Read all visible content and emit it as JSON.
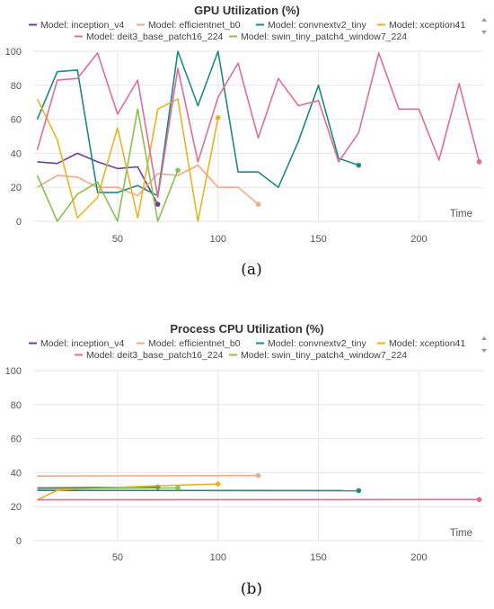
{
  "figure_captions": [
    "(a)",
    "(b)"
  ],
  "chart_data": [
    {
      "type": "line",
      "title": "GPU Utilization (%)",
      "xlabel": "Time",
      "ylabel": "",
      "xlim": [
        8,
        232
      ],
      "ylim": [
        0,
        100
      ],
      "xticks": [
        50,
        100,
        150,
        200
      ],
      "yticks": [
        0,
        20,
        40,
        60,
        80,
        100
      ],
      "grid": true,
      "legend_position": "top",
      "series": [
        {
          "name": "Model: inception_v4",
          "color": "#6b3fa0",
          "x": [
            10,
            20,
            30,
            40,
            50,
            60,
            70
          ],
          "y": [
            35,
            34,
            40,
            35,
            31,
            32,
            10
          ]
        },
        {
          "name": "Model: efficientnet_b0",
          "color": "#f2a98a",
          "x": [
            10,
            20,
            30,
            40,
            50,
            60,
            70,
            80,
            90,
            100,
            110,
            120
          ],
          "y": [
            20,
            27,
            26,
            20,
            20,
            15,
            28,
            27,
            33,
            20,
            20,
            10
          ]
        },
        {
          "name": "Model: convnextv2_tiny",
          "color": "#1a8a82",
          "x": [
            10,
            20,
            30,
            40,
            50,
            60,
            70,
            80,
            90,
            100,
            110,
            120,
            130,
            140,
            150,
            160,
            170
          ],
          "y": [
            60,
            88,
            89,
            17,
            17,
            21,
            15,
            100,
            68,
            100,
            29,
            29,
            20,
            47,
            80,
            37,
            33
          ]
        },
        {
          "name": "Model: xception41",
          "color": "#e8b420",
          "x": [
            10,
            20,
            30,
            40,
            50,
            60,
            70,
            80,
            90,
            100
          ],
          "y": [
            72,
            48,
            2,
            14,
            55,
            2,
            66,
            72,
            0,
            61
          ]
        },
        {
          "name": "Model: deit3_base_patch16_224",
          "color": "#df6d9c",
          "x": [
            10,
            20,
            30,
            40,
            50,
            60,
            70,
            80,
            90,
            100,
            110,
            120,
            130,
            140,
            150,
            160,
            170,
            180,
            190,
            200,
            210,
            220,
            230
          ],
          "y": [
            42,
            83,
            84,
            99,
            63,
            83,
            14,
            90,
            35,
            73,
            93,
            49,
            84,
            68,
            71,
            35,
            52,
            99,
            66,
            66,
            36,
            81,
            35
          ]
        },
        {
          "name": "Model: swin_tiny_patch4_window7_224",
          "color": "#8cc04e",
          "x": [
            10,
            20,
            30,
            40,
            50,
            60,
            70,
            80
          ],
          "y": [
            27,
            0,
            16,
            23,
            0,
            66,
            0,
            30
          ]
        }
      ]
    },
    {
      "type": "line",
      "title": "Process CPU Utilization (%)",
      "xlabel": "Time",
      "ylabel": "",
      "xlim": [
        8,
        232
      ],
      "ylim": [
        0,
        100
      ],
      "xticks": [
        50,
        100,
        150,
        200
      ],
      "yticks": [
        0,
        20,
        40,
        60,
        80,
        100
      ],
      "grid": true,
      "legend_position": "top",
      "series": [
        {
          "name": "Model: inception_v4",
          "color": "#6b3fa0",
          "x": [
            10,
            70
          ],
          "y": [
            31,
            31.5
          ]
        },
        {
          "name": "Model: efficientnet_b0",
          "color": "#f2a98a",
          "x": [
            10,
            120
          ],
          "y": [
            38,
            38.3
          ]
        },
        {
          "name": "Model: convnextv2_tiny",
          "color": "#1a8a82",
          "x": [
            10,
            170
          ],
          "y": [
            29.5,
            29.4
          ]
        },
        {
          "name": "Model: xception41",
          "color": "#e8b420",
          "x": [
            10,
            20,
            30,
            50,
            70,
            100
          ],
          "y": [
            24,
            29.5,
            30.5,
            31.3,
            32.3,
            33.3
          ]
        },
        {
          "name": "Model: deit3_base_patch16_224",
          "color": "#df6d9c",
          "x": [
            10,
            230
          ],
          "y": [
            24,
            24.2
          ]
        },
        {
          "name": "Model: swin_tiny_patch4_window7_224",
          "color": "#8cc04e",
          "x": [
            10,
            80
          ],
          "y": [
            30.5,
            31
          ]
        }
      ]
    }
  ]
}
